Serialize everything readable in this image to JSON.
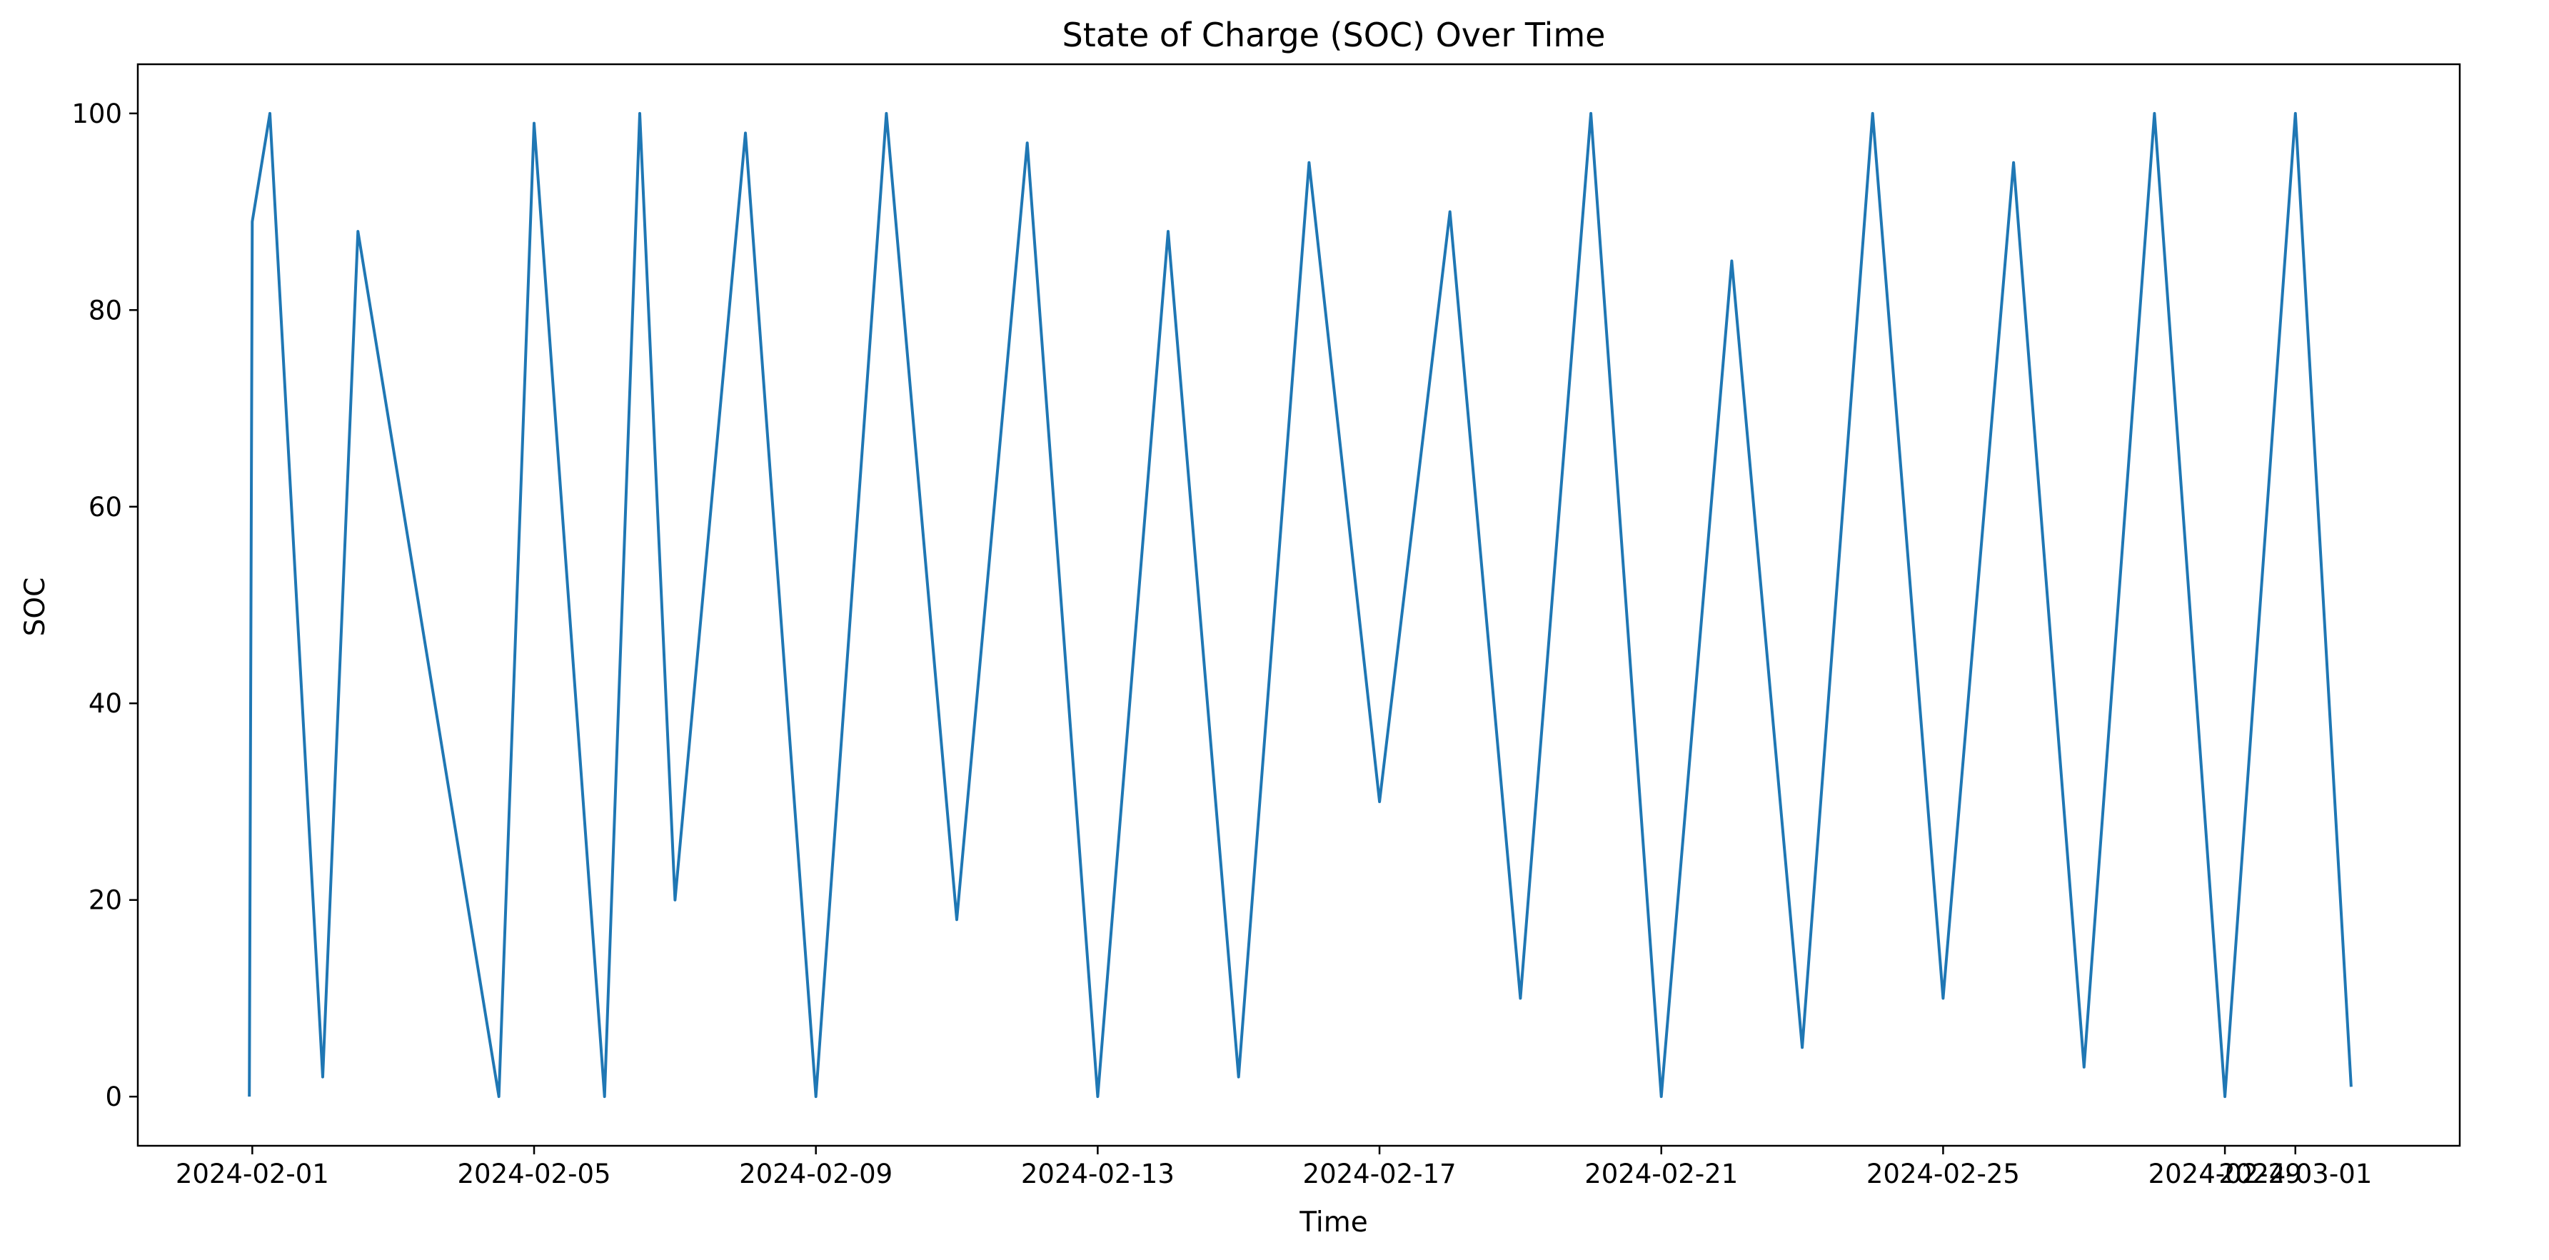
{
  "chart_data": {
    "type": "line",
    "title": "State of Charge (SOC) Over Time",
    "xlabel": "Time",
    "ylabel": "SOC",
    "xlim": [
      "2024-01-30T09:00",
      "2024-03-03T08:00"
    ],
    "ylim": [
      -5,
      105
    ],
    "x_ticks": [
      "2024-02-01",
      "2024-02-05",
      "2024-02-09",
      "2024-02-13",
      "2024-02-17",
      "2024-02-21",
      "2024-02-25",
      "2024-02-29",
      "2024-03-01"
    ],
    "y_ticks": [
      0,
      20,
      40,
      60,
      80,
      100
    ],
    "grid": false,
    "series": [
      {
        "color": "#1f77b4",
        "x": [
          "2024-01-31T23:00",
          "2024-02-01T00:00",
          "2024-02-01T06:00",
          "2024-02-02T00:00",
          "2024-02-02T12:00",
          "2024-02-04T12:00",
          "2024-02-05T00:00",
          "2024-02-06T00:00",
          "2024-02-06T12:00",
          "2024-02-07T00:00",
          "2024-02-08T00:00",
          "2024-02-09T00:00",
          "2024-02-10T00:00",
          "2024-02-11T00:00",
          "2024-02-12T00:00",
          "2024-02-13T00:00",
          "2024-02-14T00:00",
          "2024-02-15T00:00",
          "2024-02-16T00:00",
          "2024-02-17T00:00",
          "2024-02-18T00:00",
          "2024-02-19T00:00",
          "2024-02-20T00:00",
          "2024-02-21T00:00",
          "2024-02-22T00:00",
          "2024-02-23T00:00",
          "2024-02-24T00:00",
          "2024-02-25T00:00",
          "2024-02-26T00:00",
          "2024-02-27T00:00",
          "2024-02-28T00:00",
          "2024-02-29T00:00",
          "2024-03-01T00:00",
          "2024-03-01T19:00"
        ],
        "y": [
          0,
          89,
          100,
          2,
          88,
          0,
          99,
          0,
          100,
          20,
          98,
          0,
          100,
          18,
          97,
          0,
          88,
          2,
          95,
          30,
          90,
          10,
          100,
          0,
          85,
          5,
          100,
          10,
          95,
          3,
          100,
          0,
          100,
          1
        ]
      }
    ]
  }
}
